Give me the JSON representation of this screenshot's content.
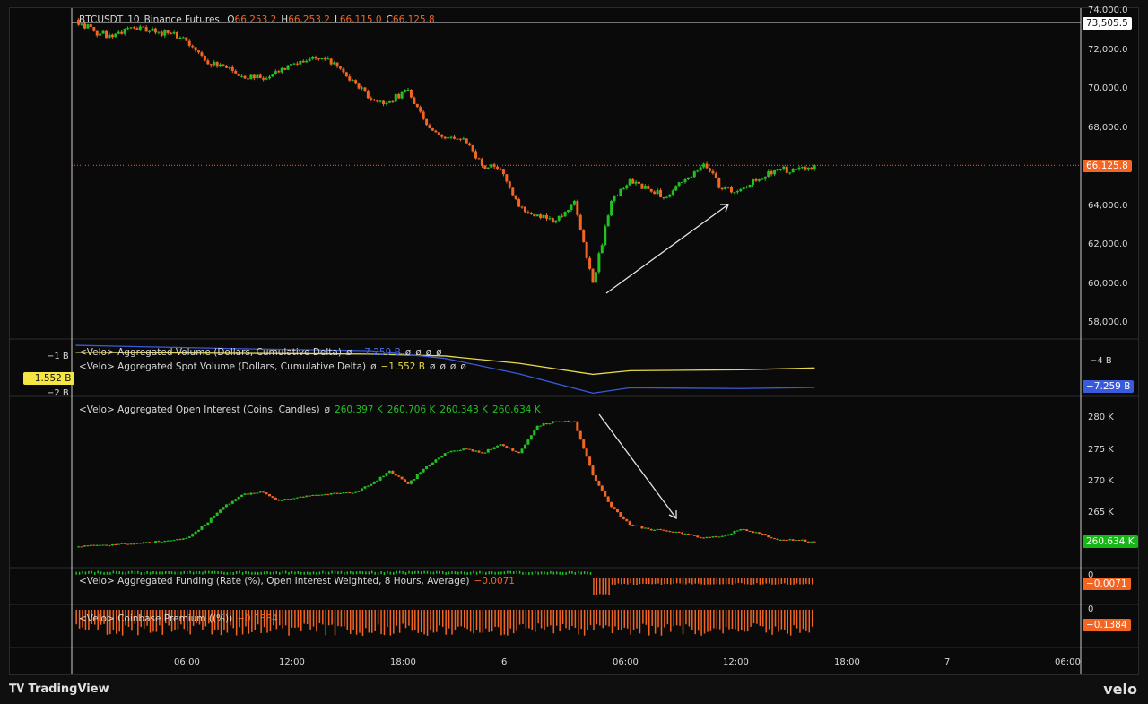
{
  "chart_data": {
    "type": "candlestick",
    "symbol": "BTCUSDT",
    "interval": "10",
    "exchange": "Binance Futures",
    "ohlc": {
      "o": "66,253.2",
      "h": "66,253.2",
      "l": "66,115.0",
      "c": "66,125.8"
    },
    "last_price_label": "66,125.8",
    "hline_label": "73,505.5",
    "price_ticks": [
      "74,000.0",
      "72,000.0",
      "70,000.0",
      "68,000.0",
      "64,000.0",
      "62,000.0",
      "60,000.0",
      "58,000.0"
    ],
    "time_ticks": [
      "06:00",
      "12:00",
      "18:00",
      "6",
      "06:00",
      "12:00",
      "18:00",
      "7",
      "06:00"
    ],
    "hourly_close": [
      73.6,
      73.0,
      72.7,
      73.2,
      73.0,
      72.9,
      72.5,
      71.5,
      71.2,
      70.7,
      70.6,
      70.9,
      71.3,
      71.6,
      71.4,
      70.5,
      69.5,
      69.4,
      70.0,
      68.2,
      67.5,
      67.5,
      66.1,
      65.9,
      64.0,
      63.6,
      63.3,
      64.3,
      60.1,
      64.3,
      65.4,
      64.9,
      64.5,
      65.4,
      66.2,
      64.9,
      64.9,
      65.4,
      65.9,
      65.9,
      66.126
    ],
    "price_unit": "thousand USD",
    "volume_delta": {
      "agg_label": "<Velo> Aggregated Volume (Dollars, Cumulative Delta)",
      "agg_value": "−7.259 B",
      "spot_label": "<Velo> Aggregated Spot Volume (Dollars, Cumulative Delta)",
      "spot_value": "−1.552 B",
      "null_marks": "ø",
      "agg_tag": "−7.259 B",
      "spot_tag": "−1.552 B",
      "left_ticks": [
        "−1 B",
        "−2 B"
      ],
      "right_ticks": [
        "−4 B"
      ],
      "agg_points_hour": [
        0,
        8,
        16,
        20,
        24,
        28,
        30,
        36,
        40
      ],
      "agg_points": [
        -1.8,
        -2.2,
        -2.5,
        -3.5,
        -5.5,
        -8.0,
        -7.3,
        -7.4,
        -7.259
      ],
      "spot_points_hour": [
        0,
        8,
        16,
        20,
        24,
        28,
        30,
        36,
        40
      ],
      "spot_points": [
        -0.7,
        -0.75,
        -0.8,
        -0.9,
        -1.3,
        -1.9,
        -1.7,
        -1.65,
        -1.552
      ]
    },
    "open_interest": {
      "label": "<Velo> Aggregated Open Interest (Coins, Candles)",
      "null_mark": "ø",
      "values": [
        "260.397 K",
        "260.706 K",
        "260.343 K",
        "260.634 K"
      ],
      "tag": "260.634 K",
      "ticks": [
        "280 K",
        "275 K",
        "270 K",
        "265 K"
      ],
      "hourly": [
        259.8,
        260.0,
        260.2,
        260.3,
        260.5,
        260.8,
        261.2,
        263.3,
        266.1,
        268.0,
        268.5,
        267.1,
        267.6,
        268.0,
        268.3,
        268.3,
        269.7,
        271.8,
        269.7,
        272.5,
        274.6,
        275.3,
        274.6,
        276.0,
        274.6,
        278.9,
        279.6,
        279.6,
        271.1,
        266.1,
        263.3,
        262.6,
        262.3,
        261.9,
        261.2,
        261.5,
        262.6,
        261.9,
        260.9,
        260.9,
        260.634
      ]
    },
    "funding": {
      "label": "<Velo> Aggregated Funding (Rate (%), Open Interest Weighted, 8 Hours, Average)",
      "value": "−0.0071",
      "tag": "−0.0071",
      "tick": "0",
      "flip_hour": 28
    },
    "premium": {
      "label": "<Velo> Coinbase Premium ((%))",
      "value": "−0.1384",
      "tag": "−0.1384",
      "tick": "0"
    },
    "colors": {
      "up": "#22c022",
      "down": "#f26522",
      "agg": "#3a5bd9",
      "spot": "#e8d84a",
      "bg": "#0a0a0a"
    }
  },
  "footer": {
    "brand": "TradingView",
    "partner": "velo"
  }
}
